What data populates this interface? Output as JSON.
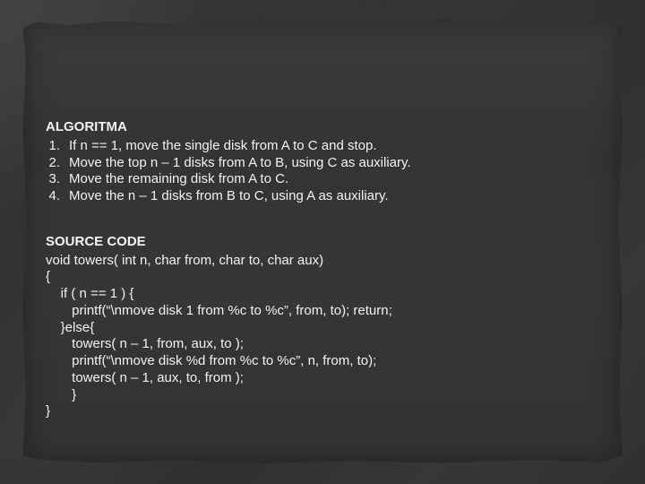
{
  "slide": {
    "background_outer": "#2a2a2a",
    "paper_bg": "#363636",
    "text_color": "#f2f2f2",
    "font_family": "Arial",
    "body_fontsize_pt": 11
  },
  "algorithm": {
    "heading": "ALGORITMA",
    "items": [
      {
        "num": "1.",
        "text": "If n == 1, move the single disk from A to C and stop."
      },
      {
        "num": "2.",
        "text": "Move the top n – 1 disks from A to B, using C as auxiliary."
      },
      {
        "num": "3.",
        "text": "Move the remaining disk from A to C."
      },
      {
        "num": "4.",
        "text": "Move the n – 1 disks from B to C, using A as auxiliary."
      }
    ]
  },
  "source": {
    "heading": "SOURCE CODE",
    "lines": [
      "void towers( int n, char from, char to, char aux)",
      "{",
      "    if ( n == 1 ) {",
      "       printf(“\\nmove disk 1 from %c to %c”, from, to); return;",
      "    }else{",
      "       towers( n – 1, from, aux, to );",
      "       printf(“\\nmove disk %d from %c to %c”, n, from, to);",
      "       towers( n – 1, aux, to, from );",
      "       }",
      "}"
    ]
  }
}
